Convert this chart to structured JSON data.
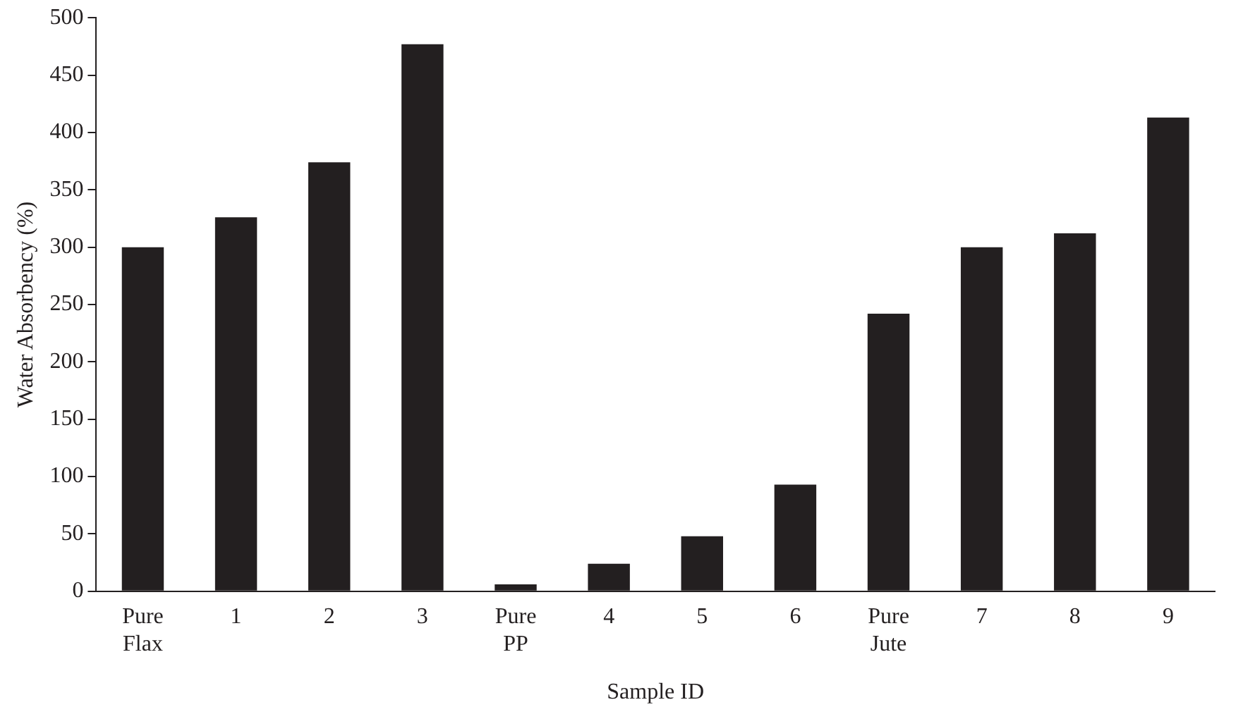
{
  "chart_data": {
    "type": "bar",
    "xlabel": "Sample ID",
    "ylabel": "Water Absorbency (%)",
    "categories": [
      "Pure Flax",
      "1",
      "2",
      "3",
      "Pure PP",
      "4",
      "5",
      "6",
      "Pure Jute",
      "7",
      "8",
      "9"
    ],
    "values": [
      300,
      326,
      374,
      477,
      6,
      24,
      48,
      93,
      242,
      300,
      312,
      413
    ],
    "color": "#231f20",
    "ylim": [
      0,
      500
    ],
    "yticks": [
      0,
      50,
      100,
      150,
      200,
      250,
      300,
      350,
      400,
      450,
      500
    ],
    "grid": false,
    "legend": false
  }
}
